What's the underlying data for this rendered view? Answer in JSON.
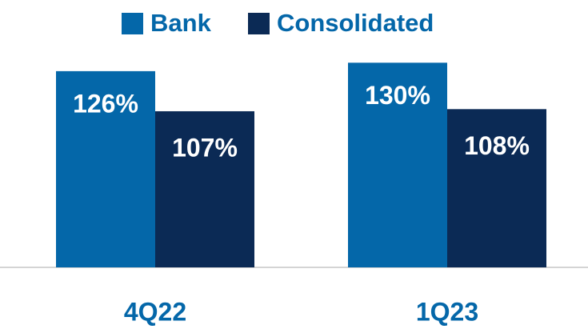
{
  "chart_data": {
    "type": "bar",
    "categories": [
      "4Q22",
      "1Q23"
    ],
    "series": [
      {
        "name": "Bank",
        "color": "#0467a9",
        "values": [
          126,
          130
        ],
        "value_labels": [
          "126%",
          "130%"
        ]
      },
      {
        "name": "Consolidated",
        "color": "#0b2a55",
        "values": [
          107,
          108
        ],
        "value_labels": [
          "107%",
          "108%"
        ]
      }
    ],
    "ylim": [
      33,
      140
    ]
  }
}
